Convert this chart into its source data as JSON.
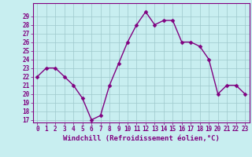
{
  "x": [
    0,
    1,
    2,
    3,
    4,
    5,
    6,
    7,
    8,
    9,
    10,
    11,
    12,
    13,
    14,
    15,
    16,
    17,
    18,
    19,
    20,
    21,
    22,
    23
  ],
  "y": [
    22,
    23,
    23,
    22,
    21,
    19.5,
    17,
    17.5,
    21,
    23.5,
    26,
    28,
    29.5,
    28,
    28.5,
    28.5,
    26,
    26,
    25.5,
    24,
    20,
    21,
    21,
    20
  ],
  "line_color": "#800080",
  "marker_color": "#800080",
  "bg_color": "#C8EEF0",
  "grid_color": "#9ec8cc",
  "xlabel": "Windchill (Refroidissement éolien,°C)",
  "ylim": [
    17,
    30
  ],
  "xlim": [
    -0.5,
    23.5
  ],
  "yticks": [
    17,
    18,
    19,
    20,
    21,
    22,
    23,
    24,
    25,
    26,
    27,
    28,
    29
  ],
  "xticks": [
    0,
    1,
    2,
    3,
    4,
    5,
    6,
    7,
    8,
    9,
    10,
    11,
    12,
    13,
    14,
    15,
    16,
    17,
    18,
    19,
    20,
    21,
    22,
    23
  ],
  "line_width": 1.0,
  "marker_size": 2.5,
  "tick_fontsize": 5.5,
  "xlabel_fontsize": 6.5
}
